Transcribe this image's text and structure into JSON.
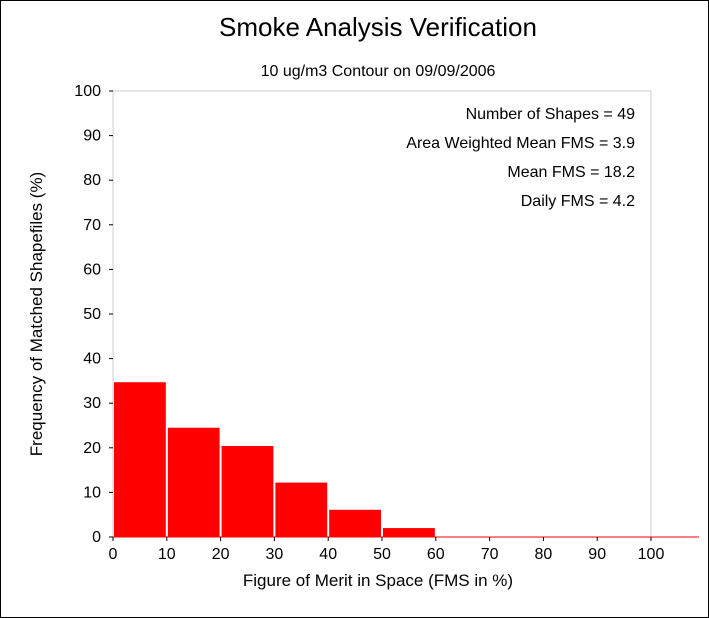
{
  "chart_data": {
    "type": "bar",
    "title": "Smoke Analysis Verification",
    "subtitle": "10 ug/m3 Contour on 09/09/2006",
    "xlabel": "Figure of Merit in Space (FMS in %)",
    "ylabel": "Frequency of Matched Shapefiles (%)",
    "xlim": [
      0,
      100
    ],
    "ylim": [
      0,
      100
    ],
    "x_ticks": [
      "0",
      "10",
      "20",
      "30",
      "40",
      "50",
      "60",
      "70",
      "80",
      "90",
      "100"
    ],
    "y_ticks": [
      "0",
      "10",
      "20",
      "30",
      "40",
      "50",
      "60",
      "70",
      "80",
      "90",
      "100"
    ],
    "bins": [
      [
        0,
        10
      ],
      [
        10,
        20
      ],
      [
        20,
        30
      ],
      [
        30,
        40
      ],
      [
        40,
        50
      ],
      [
        50,
        60
      ],
      [
        60,
        70
      ],
      [
        70,
        80
      ],
      [
        80,
        90
      ],
      [
        90,
        100
      ]
    ],
    "values": [
      34.7,
      24.5,
      20.4,
      12.2,
      6.1,
      2.0,
      0,
      0,
      0,
      0
    ],
    "bar_color": "#ff0000",
    "grid": false,
    "annotations": [
      "Number of Shapes = 49",
      "Area Weighted Mean FMS = 3.9",
      "Mean FMS = 18.2",
      "Daily FMS = 4.2"
    ]
  }
}
